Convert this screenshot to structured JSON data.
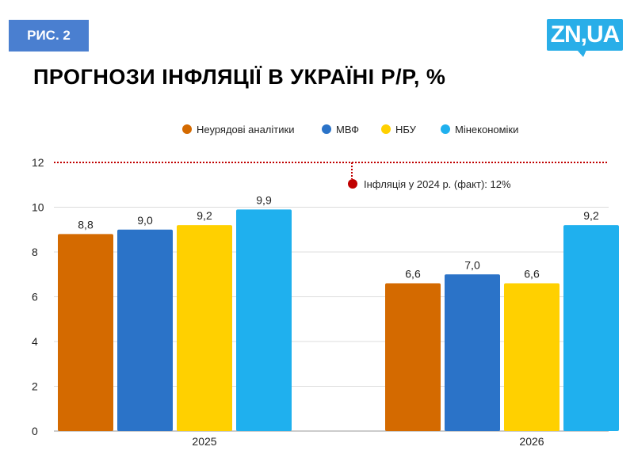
{
  "figure_label": "РИС. 2",
  "logo": "ZN,UA",
  "title": "ПРОГНОЗИ ІНФЛЯЦІЇ В УКРАЇНІ Р/Р, %",
  "chart_data": {
    "type": "bar",
    "categories": [
      "2025",
      "2026"
    ],
    "series": [
      {
        "name": "Неурядові аналітики",
        "color": "#d46a00",
        "values": [
          8.8,
          6.6
        ],
        "labels": [
          "8,8",
          "6,6"
        ]
      },
      {
        "name": "МВФ",
        "color": "#2b73c8",
        "values": [
          9.0,
          7.0
        ],
        "labels": [
          "9,0",
          "7,0"
        ]
      },
      {
        "name": "НБУ",
        "color": "#ffd000",
        "values": [
          9.2,
          6.6
        ],
        "labels": [
          "9,2",
          "6,6"
        ]
      },
      {
        "name": "Мінекономіки",
        "color": "#1fb0ee",
        "values": [
          9.9,
          9.2
        ],
        "labels": [
          "9,9",
          "9,2"
        ]
      }
    ],
    "ylim": [
      0,
      12
    ],
    "yticks": [
      "0",
      "2",
      "4",
      "6",
      "8",
      "10",
      "12"
    ],
    "grid": true,
    "legend": "top",
    "reference_line": {
      "value": 12,
      "color": "#c00000",
      "label": "Інфляція у 2024 р. (факт): 12%"
    }
  }
}
